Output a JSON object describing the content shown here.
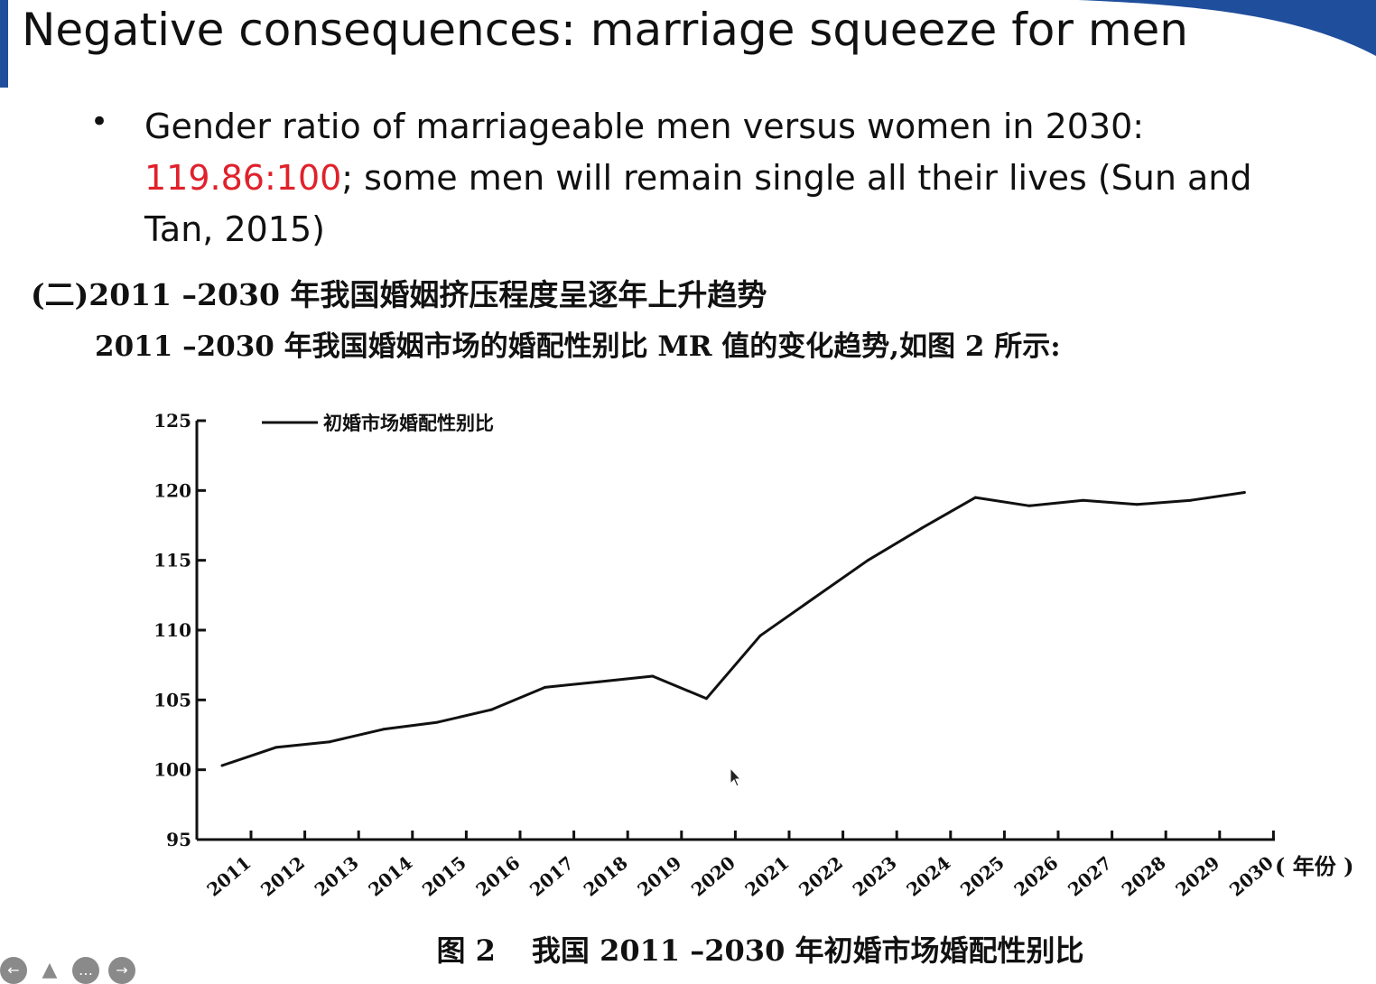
{
  "slide": {
    "title": "Negative consequences: marriage squeeze for men",
    "bullet": {
      "text_before": "Gender ratio of marriageable men versus women in 2030: ",
      "highlight": "119.86:100",
      "text_after": "; some men will remain single all their lives (Sun and Tan, 2015)"
    },
    "zh_heading": "(二)2011 –2030 年我国婚姻挤压程度呈逐年上升趋势",
    "zh_sentence": "2011 –2030 年我国婚姻市场的婚配性别比 MR 值的变化趋势,如图 2 所示:",
    "caption": {
      "figure_label": "图 2",
      "text": "我国 2011 –2030 年初婚市场婚配性别比"
    },
    "colors": {
      "accent": "#1f4e9c",
      "highlight": "#e0212b"
    },
    "nav_icons": [
      "back-arrow-icon",
      "pen-icon",
      "more-icon",
      "forward-arrow-icon"
    ]
  },
  "chart_data": {
    "type": "line",
    "title": "",
    "xlabel": "( 年份 )",
    "ylabel": "",
    "categories": [
      "2011",
      "2012",
      "2013",
      "2014",
      "2015",
      "2016",
      "2017",
      "2018",
      "2019",
      "2020",
      "2021",
      "2022",
      "2023",
      "2024",
      "2025",
      "2026",
      "2027",
      "2028",
      "2029",
      "2030"
    ],
    "series": [
      {
        "name": "初婚市场婚配性别比",
        "values": [
          100.3,
          101.6,
          102.0,
          102.9,
          103.4,
          104.3,
          105.9,
          106.3,
          106.7,
          105.1,
          109.6,
          112.3,
          115.0,
          117.3,
          119.5,
          118.9,
          119.3,
          119.0,
          119.3,
          119.86
        ]
      }
    ],
    "ylim": [
      95,
      125
    ],
    "yticks": [
      95,
      100,
      105,
      110,
      115,
      120,
      125
    ],
    "grid": false,
    "legend": "top-left"
  }
}
